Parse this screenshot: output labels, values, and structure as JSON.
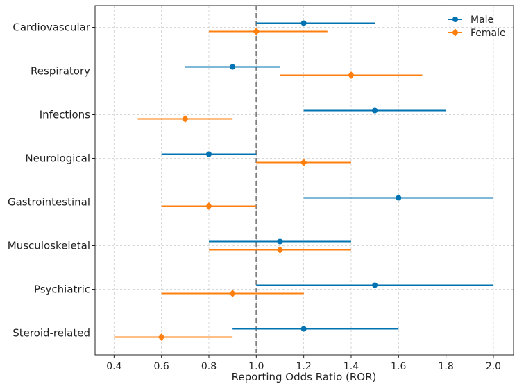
{
  "chart_data": {
    "type": "forest",
    "title": "",
    "xlabel": "Reporting Odds Ratio (ROR)",
    "ylabel": "",
    "xlim": [
      0.32,
      2.085
    ],
    "xticks": [
      0.4,
      0.6,
      0.8,
      1.0,
      1.2,
      1.4,
      1.6,
      1.8,
      2.0
    ],
    "xtick_labels": [
      "0.4",
      "0.6",
      "0.8",
      "1.0",
      "1.2",
      "1.4",
      "1.6",
      "1.8",
      "2.0"
    ],
    "reference_line": 1.0,
    "grid": true,
    "legend_position": "top-right",
    "categories": [
      "Cardiovascular",
      "Respiratory",
      "Infections",
      "Neurological",
      "Gastrointestinal",
      "Musculoskeletal",
      "Psychiatric",
      "Steroid-related"
    ],
    "series": [
      {
        "name": "Male",
        "color": "#0173b2",
        "marker": "circle",
        "values": [
          1.2,
          0.9,
          1.5,
          0.8,
          1.6,
          1.1,
          1.5,
          1.2
        ],
        "lower": [
          1.0,
          0.7,
          1.2,
          0.6,
          1.2,
          0.8,
          1.0,
          0.9
        ],
        "upper": [
          1.5,
          1.1,
          1.8,
          1.0,
          2.0,
          1.4,
          2.0,
          1.6
        ]
      },
      {
        "name": "Female",
        "color": "#ff7f0e",
        "marker": "diamond",
        "values": [
          1.0,
          1.4,
          0.7,
          1.2,
          0.8,
          1.1,
          0.9,
          0.6
        ],
        "lower": [
          0.8,
          1.1,
          0.5,
          1.0,
          0.6,
          0.8,
          0.6,
          0.4
        ],
        "upper": [
          1.3,
          1.7,
          0.9,
          1.4,
          1.0,
          1.4,
          1.2,
          0.9
        ]
      }
    ]
  }
}
